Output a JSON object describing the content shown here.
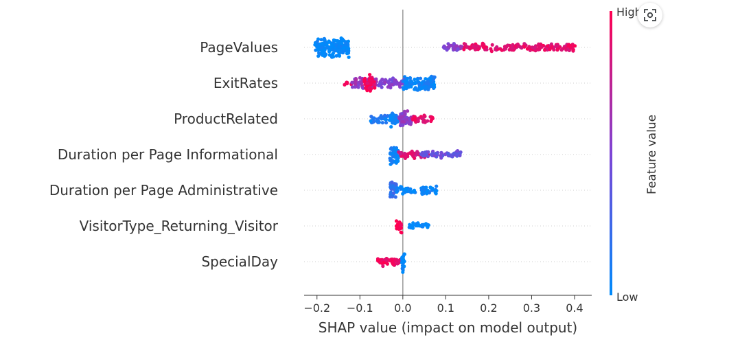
{
  "chart_data": {
    "type": "scatter",
    "subtype": "shap-beeswarm",
    "xlabel": "SHAP value (impact on model output)",
    "xlim": [
      -0.23,
      0.44
    ],
    "xticks": [
      "−0.2",
      "−0.1",
      "0.0",
      "0.1",
      "0.2",
      "0.3",
      "0.4"
    ],
    "xtick_values": [
      -0.2,
      -0.1,
      0.0,
      0.1,
      0.2,
      0.3,
      0.4
    ],
    "zero_line": true,
    "features": [
      {
        "name": "PageValues",
        "segments": [
          {
            "from": -0.205,
            "to": -0.125,
            "color_value": 0.0,
            "density": 10
          },
          {
            "from": 0.095,
            "to": 0.14,
            "color_value": 0.55,
            "density": 3
          },
          {
            "from": 0.14,
            "to": 0.405,
            "color_value": 0.9,
            "density": 3
          }
        ]
      },
      {
        "name": "ExitRates",
        "segments": [
          {
            "from": -0.145,
            "to": -0.12,
            "color_value": 0.9,
            "density": 1
          },
          {
            "from": -0.12,
            "to": -0.06,
            "color_value": 0.6,
            "density": 5
          },
          {
            "from": -0.09,
            "to": -0.065,
            "color_value": 0.95,
            "density": 8
          },
          {
            "from": -0.06,
            "to": 0.01,
            "color_value": 0.5,
            "density": 4
          },
          {
            "from": 0.0,
            "to": 0.075,
            "color_value": 0.05,
            "density": 7
          }
        ]
      },
      {
        "name": "ProductRelated",
        "segments": [
          {
            "from": -0.075,
            "to": -0.01,
            "color_value": 0.1,
            "density": 4
          },
          {
            "from": -0.03,
            "to": -0.02,
            "color_value": 0.05,
            "density": 8
          },
          {
            "from": -0.01,
            "to": 0.02,
            "color_value": 0.55,
            "density": 8
          },
          {
            "from": 0.02,
            "to": 0.075,
            "color_value": 0.9,
            "density": 3
          }
        ]
      },
      {
        "name": "Duration per Page Informational",
        "segments": [
          {
            "from": -0.03,
            "to": -0.01,
            "color_value": 0.05,
            "density": 10
          },
          {
            "from": -0.01,
            "to": 0.06,
            "color_value": 0.85,
            "density": 3
          },
          {
            "from": 0.04,
            "to": 0.135,
            "color_value": 0.4,
            "density": 3
          }
        ]
      },
      {
        "name": "Duration per Page Administrative",
        "segments": [
          {
            "from": -0.03,
            "to": -0.015,
            "color_value": 0.2,
            "density": 10
          },
          {
            "from": -0.015,
            "to": 0.085,
            "color_value": 0.05,
            "density": 3
          }
        ]
      },
      {
        "name": "VisitorType_Returning_Visitor",
        "segments": [
          {
            "from": -0.015,
            "to": -0.003,
            "color_value": 1.0,
            "density": 8
          },
          {
            "from": 0.015,
            "to": 0.06,
            "color_value": 0.0,
            "density": 3
          }
        ]
      },
      {
        "name": "SpecialDay",
        "segments": [
          {
            "from": -0.06,
            "to": -0.005,
            "color_value": 0.95,
            "density": 4
          },
          {
            "from": -0.003,
            "to": 0.005,
            "color_value": 0.0,
            "density": 12
          }
        ]
      }
    ],
    "colorbar": {
      "title": "Feature value",
      "high_label": "High",
      "low_label": "Low",
      "low_color": "#008bfb",
      "high_color": "#ff0051"
    }
  },
  "icons": {
    "lens": "lens-icon"
  }
}
